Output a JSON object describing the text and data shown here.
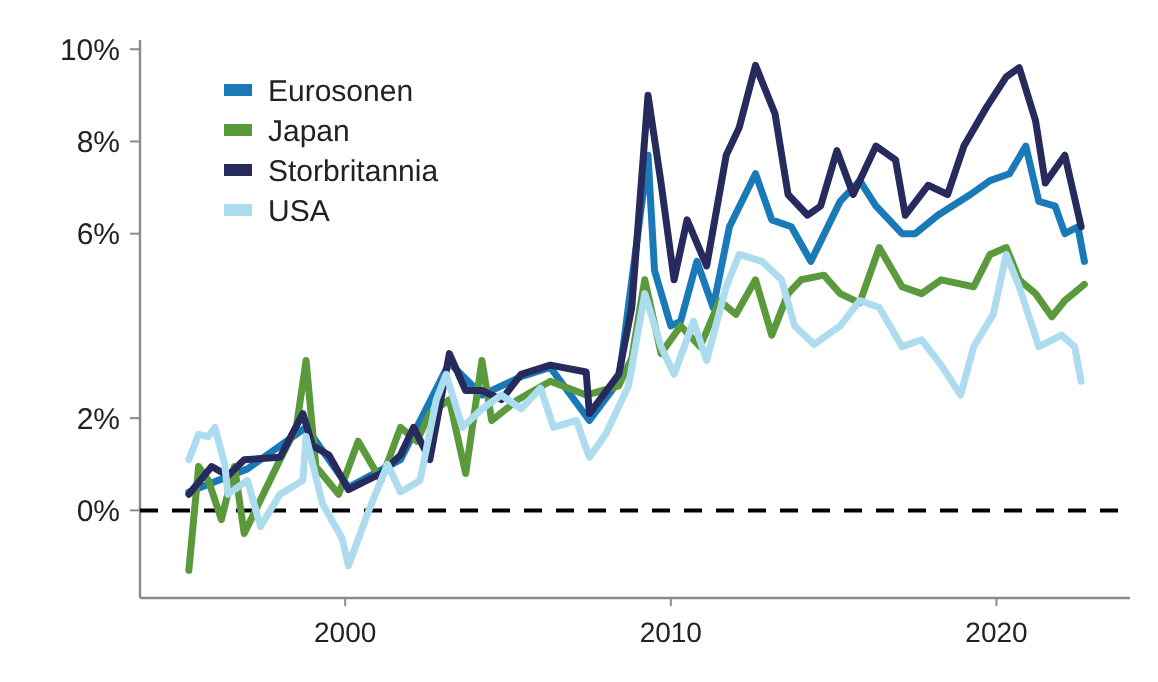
{
  "chart_data": {
    "type": "line",
    "xlim": [
      1993.7,
      2024.1
    ],
    "xticks": [
      2000,
      2010,
      2020
    ],
    "ylim": [
      -1.9,
      10.2
    ],
    "yticks": [
      {
        "value": 0,
        "label": "0%"
      },
      {
        "value": 2,
        "label": "2%"
      },
      {
        "value": 6,
        "label": "6%"
      },
      {
        "value": 8,
        "label": "8%"
      },
      {
        "value": 10,
        "label": "10%"
      }
    ],
    "grid": false,
    "legend": "top left",
    "line_style": "solid",
    "marker": "none",
    "ref_lines": [
      {
        "axis": "y",
        "value": 0,
        "color": "#000000",
        "line_style": "dashed"
      }
    ],
    "series": [
      {
        "name": "Eurosonen",
        "color": "#1a7ab8",
        "x": [
          1995.2,
          1997.0,
          1998.8,
          2000.1,
          2001.7,
          2003.2,
          2004.2,
          2005.4,
          2006.3,
          2007.5,
          2008.4,
          2009.3,
          2009.5,
          2010.0,
          2010.3,
          2010.8,
          2011.3,
          2011.8,
          2012.6,
          2013.1,
          2013.7,
          2014.3,
          2015.2,
          2015.8,
          2016.3,
          2017.1,
          2017.5,
          2018.2,
          2019.2,
          2019.8,
          2020.4,
          2020.9,
          2021.3,
          2021.8,
          2022.1,
          2022.5,
          2022.7
        ],
        "values": [
          0.4,
          0.9,
          1.8,
          0.5,
          1.1,
          3.2,
          2.5,
          2.9,
          3.1,
          1.95,
          2.8,
          7.7,
          5.2,
          4.0,
          4.1,
          5.4,
          4.4,
          6.15,
          7.3,
          6.3,
          6.15,
          5.4,
          6.7,
          7.15,
          6.6,
          6.0,
          6.0,
          6.4,
          6.85,
          7.15,
          7.3,
          7.9,
          6.7,
          6.6,
          6.0,
          6.15,
          5.4
        ]
      },
      {
        "name": "Japan",
        "color": "#5a9a3c",
        "x": [
          1995.2,
          1995.5,
          1995.8,
          1996.2,
          1996.6,
          1996.9,
          1998.0,
          1998.5,
          1998.8,
          1999.1,
          1999.8,
          2000.4,
          2001.1,
          2001.7,
          2002.2,
          2002.6,
          2003.2,
          2003.7,
          2004.2,
          2004.5,
          2005.3,
          2006.3,
          2007.4,
          2008.4,
          2008.8,
          2009.2,
          2009.7,
          2010.3,
          2010.9,
          2011.5,
          2012.0,
          2012.6,
          2013.1,
          2013.6,
          2014.0,
          2014.7,
          2015.2,
          2015.8,
          2016.4,
          2017.1,
          2017.7,
          2018.3,
          2019.3,
          2019.8,
          2020.3,
          2020.7,
          2021.2,
          2021.7,
          2022.1,
          2022.7
        ],
        "values": [
          -1.3,
          0.95,
          0.65,
          -0.2,
          0.95,
          -0.5,
          1.1,
          1.8,
          3.25,
          0.95,
          0.35,
          1.5,
          0.65,
          1.8,
          1.5,
          2.1,
          2.4,
          0.8,
          3.25,
          1.95,
          2.4,
          2.8,
          2.5,
          2.7,
          3.3,
          5.0,
          3.4,
          4.0,
          3.55,
          4.55,
          4.25,
          5.0,
          3.8,
          4.7,
          5.0,
          5.1,
          4.7,
          4.5,
          5.7,
          4.85,
          4.7,
          5.0,
          4.85,
          5.55,
          5.7,
          5.0,
          4.7,
          4.2,
          4.55,
          4.9
        ]
      },
      {
        "name": "Storbritannia",
        "color": "#262a5c",
        "x": [
          1995.2,
          1995.9,
          1996.4,
          1996.9,
          1998.0,
          1998.7,
          1999.0,
          1999.5,
          2000.1,
          2001.1,
          2001.7,
          2002.1,
          2002.6,
          2003.2,
          2003.7,
          2004.2,
          2004.8,
          2005.4,
          2006.3,
          2007.4,
          2007.5,
          2008.4,
          2008.8,
          2009.3,
          2009.7,
          2010.1,
          2010.5,
          2011.1,
          2011.7,
          2012.1,
          2012.6,
          2013.2,
          2013.6,
          2014.2,
          2014.6,
          2015.1,
          2015.6,
          2016.3,
          2016.9,
          2017.2,
          2017.9,
          2018.5,
          2019.0,
          2019.7,
          2020.3,
          2020.7,
          2021.2,
          2021.5,
          2022.1,
          2022.6
        ],
        "values": [
          0.35,
          0.95,
          0.75,
          1.1,
          1.15,
          2.1,
          1.4,
          1.2,
          0.45,
          0.8,
          1.2,
          1.8,
          1.1,
          3.4,
          2.6,
          2.6,
          2.4,
          2.95,
          3.15,
          3.0,
          2.1,
          2.95,
          4.4,
          9.0,
          7.1,
          5.0,
          6.3,
          5.3,
          7.7,
          8.3,
          9.65,
          8.6,
          6.85,
          6.4,
          6.6,
          7.8,
          6.85,
          7.9,
          7.6,
          6.4,
          7.05,
          6.85,
          7.9,
          8.75,
          9.4,
          9.6,
          8.45,
          7.1,
          7.7,
          6.15
        ]
      },
      {
        "name": "USA",
        "color": "#aedcef",
        "x": [
          1995.2,
          1995.5,
          1995.8,
          1996.0,
          1996.3,
          1996.4,
          1997.0,
          1997.4,
          1998.0,
          1998.7,
          1998.8,
          1999.3,
          1999.9,
          2000.1,
          2000.7,
          2001.3,
          2001.7,
          2002.3,
          2002.8,
          2003.1,
          2003.6,
          2004.2,
          2004.8,
          2005.4,
          2006.0,
          2006.4,
          2007.1,
          2007.5,
          2008.0,
          2008.7,
          2009.2,
          2009.7,
          2010.1,
          2010.7,
          2011.1,
          2011.7,
          2012.1,
          2012.8,
          2013.4,
          2013.8,
          2014.4,
          2015.2,
          2015.8,
          2016.4,
          2017.1,
          2017.7,
          2018.3,
          2018.9,
          2019.3,
          2019.9,
          2020.3,
          2020.7,
          2021.3,
          2022.0,
          2022.4,
          2022.6
        ],
        "values": [
          1.1,
          1.65,
          1.6,
          1.8,
          1.0,
          0.35,
          0.65,
          -0.35,
          0.35,
          0.65,
          1.6,
          0.15,
          -0.6,
          -1.2,
          -0.05,
          1.0,
          0.4,
          0.65,
          2.4,
          2.95,
          1.8,
          2.2,
          2.5,
          2.2,
          2.65,
          1.8,
          1.95,
          1.15,
          1.65,
          2.7,
          4.7,
          3.55,
          2.95,
          4.1,
          3.25,
          4.85,
          5.55,
          5.4,
          5.0,
          4.0,
          3.6,
          4.0,
          4.55,
          4.4,
          3.55,
          3.7,
          3.15,
          2.5,
          3.55,
          4.25,
          5.55,
          4.85,
          3.55,
          3.8,
          3.55,
          2.8
        ]
      }
    ]
  }
}
